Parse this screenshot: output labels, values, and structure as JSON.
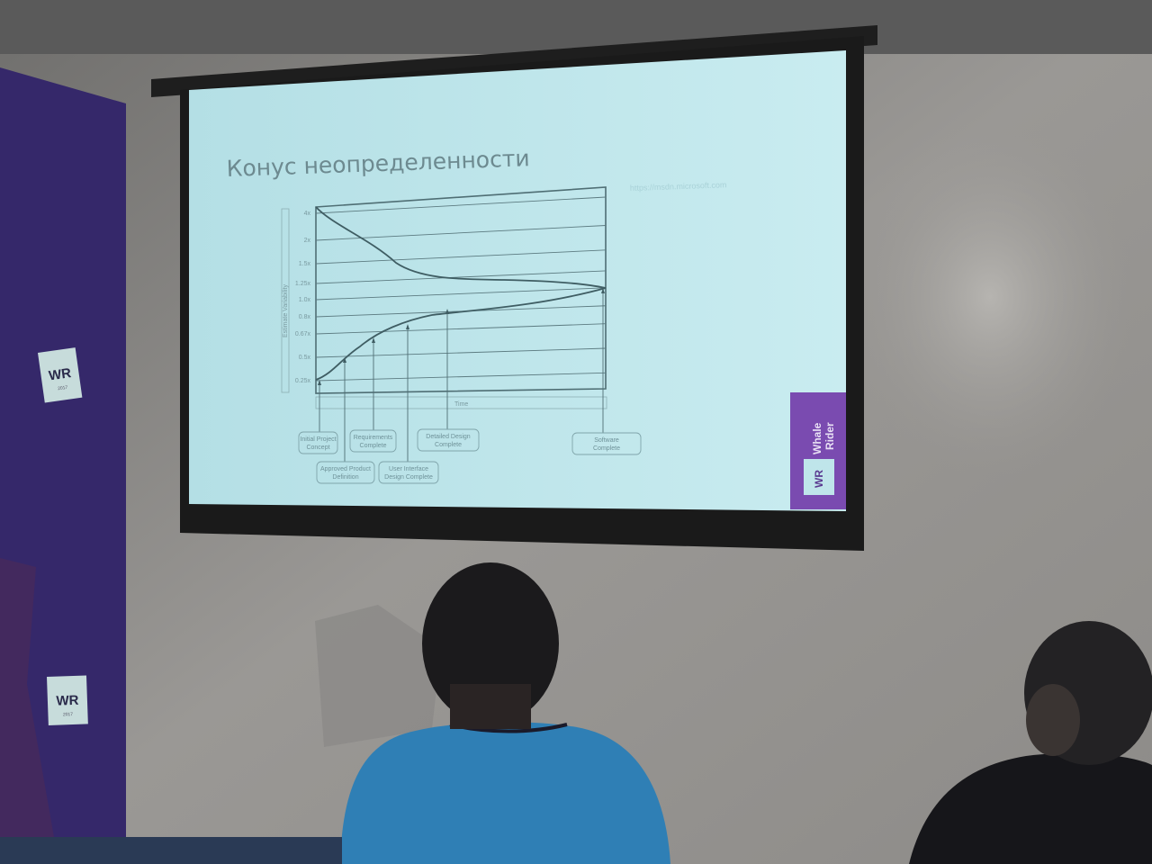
{
  "slide": {
    "title": "Конус неопределенности",
    "source_url": "https://msdn.microsoft.com",
    "background_color": "#bfe5ea",
    "chart": {
      "ylabel": "Estimate Variability",
      "xlabel": "Time",
      "y_ticks": [
        "4x",
        "2x",
        "1.5x",
        "1.25x",
        "1.0x",
        "0.8x",
        "0.67x",
        "0.5x",
        "0.25x"
      ],
      "milestones": [
        {
          "line1": "Initial Project",
          "line2": "Concept"
        },
        {
          "line1": "Approved Product",
          "line2": "Definition"
        },
        {
          "line1": "Requirements",
          "line2": "Complete"
        },
        {
          "line1": "User Interface",
          "line2": "Design Complete"
        },
        {
          "line1": "Detailed Design",
          "line2": "Complete"
        },
        {
          "line1": "Software",
          "line2": "Complete"
        }
      ]
    },
    "logo": {
      "line1": "Whale",
      "line2": "Rider",
      "mark": "WR",
      "color": "#7a4bb0"
    }
  },
  "banner": {
    "mark": "WR",
    "year": "2017",
    "color": "#35286a"
  }
}
